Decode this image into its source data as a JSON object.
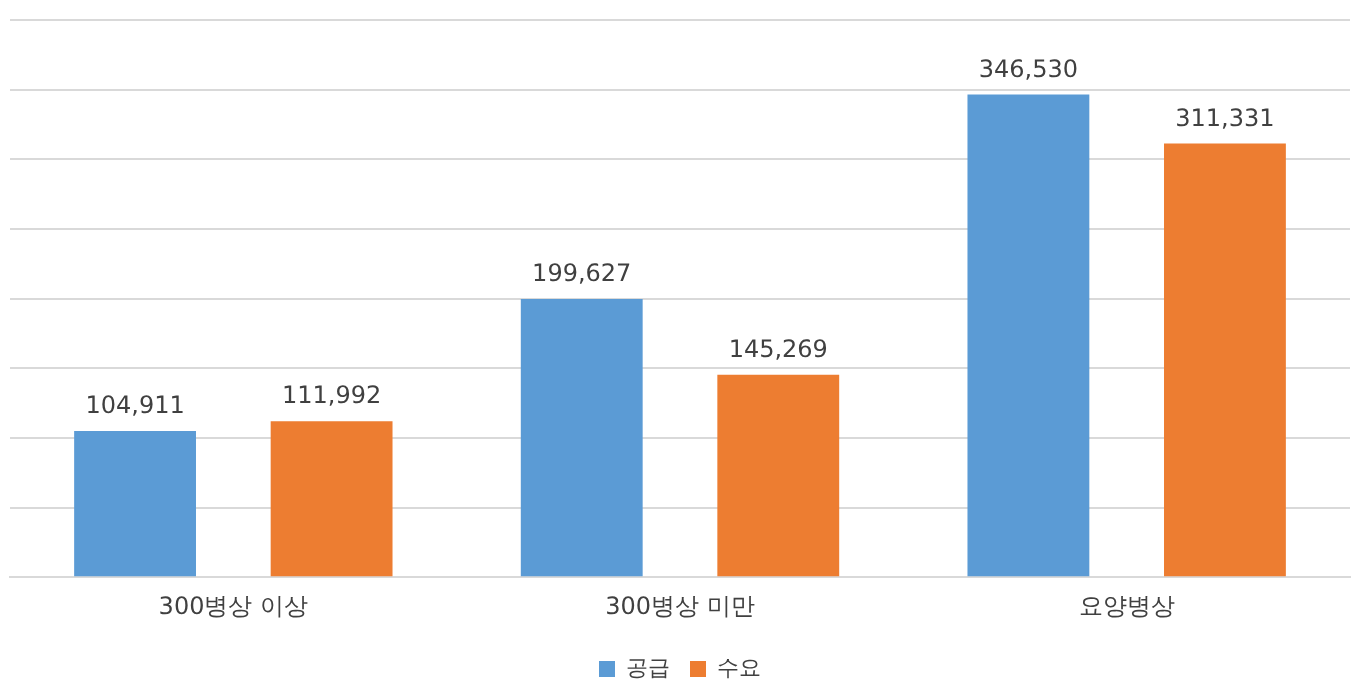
{
  "chart_data": {
    "type": "bar",
    "categories": [
      "300병상 이상",
      "300병상 미만",
      "요양병상"
    ],
    "series": [
      {
        "name": "공급",
        "color": "#5b9bd5",
        "values": [
          104911,
          199627,
          346530
        ],
        "value_labels": [
          "104,911",
          "199,627",
          "346,530"
        ]
      },
      {
        "name": "수요",
        "color": "#ed7d31",
        "values": [
          111992,
          145269,
          311331
        ],
        "value_labels": [
          "111,992",
          "145,269",
          "311,331"
        ]
      }
    ],
    "grid": "y",
    "legend": "bottom",
    "tick_labels": "x"
  }
}
